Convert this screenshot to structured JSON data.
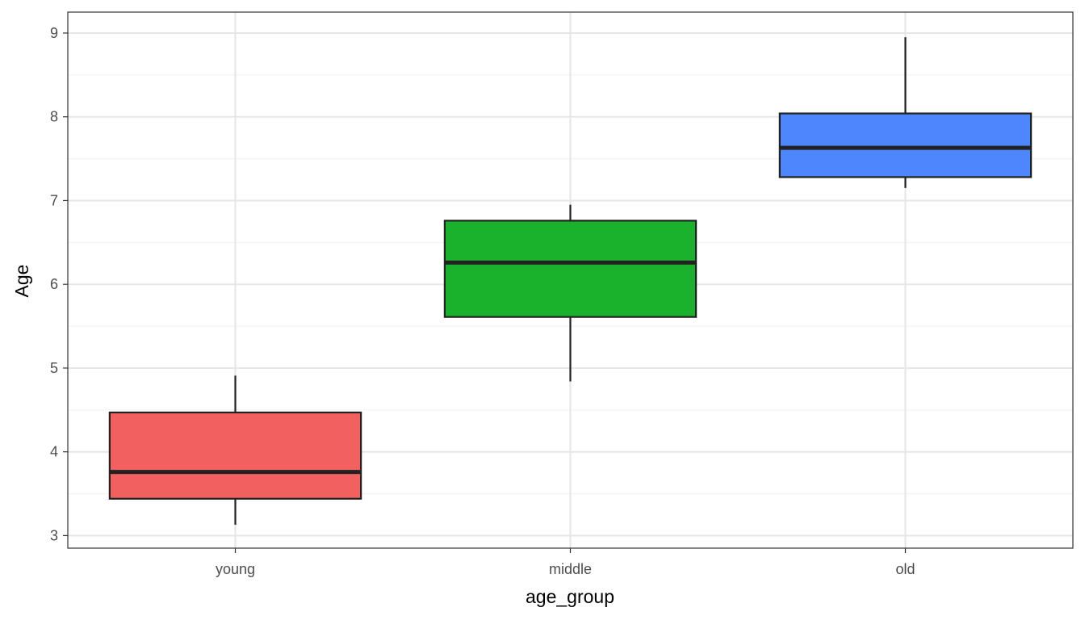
{
  "chart_data": {
    "type": "boxplot",
    "title": "",
    "xlabel": "age_group",
    "ylabel": "Age",
    "categories": [
      "young",
      "middle",
      "old"
    ],
    "ylim": [
      2.85,
      9.25
    ],
    "y_ticks": [
      3,
      4,
      5,
      6,
      7,
      8,
      9
    ],
    "grid": true,
    "legend": "none",
    "boxes": [
      {
        "category": "young",
        "min": 3.13,
        "q1": 3.44,
        "median": 3.76,
        "q3": 4.47,
        "max": 4.91,
        "color": "#F36060"
      },
      {
        "category": "middle",
        "min": 4.84,
        "q1": 5.61,
        "median": 6.26,
        "q3": 6.76,
        "max": 6.95,
        "color": "#1AB22C"
      },
      {
        "category": "old",
        "min": 7.15,
        "q1": 7.28,
        "median": 7.63,
        "q3": 8.04,
        "max": 8.95,
        "color": "#4E86FE"
      }
    ]
  },
  "colors": {
    "panel_border": "#333333",
    "grid_major": "#e6e6e6",
    "grid_minor": "#f0f0f0",
    "box_outline": "#222222",
    "tick_text": "#4d4d4d"
  }
}
